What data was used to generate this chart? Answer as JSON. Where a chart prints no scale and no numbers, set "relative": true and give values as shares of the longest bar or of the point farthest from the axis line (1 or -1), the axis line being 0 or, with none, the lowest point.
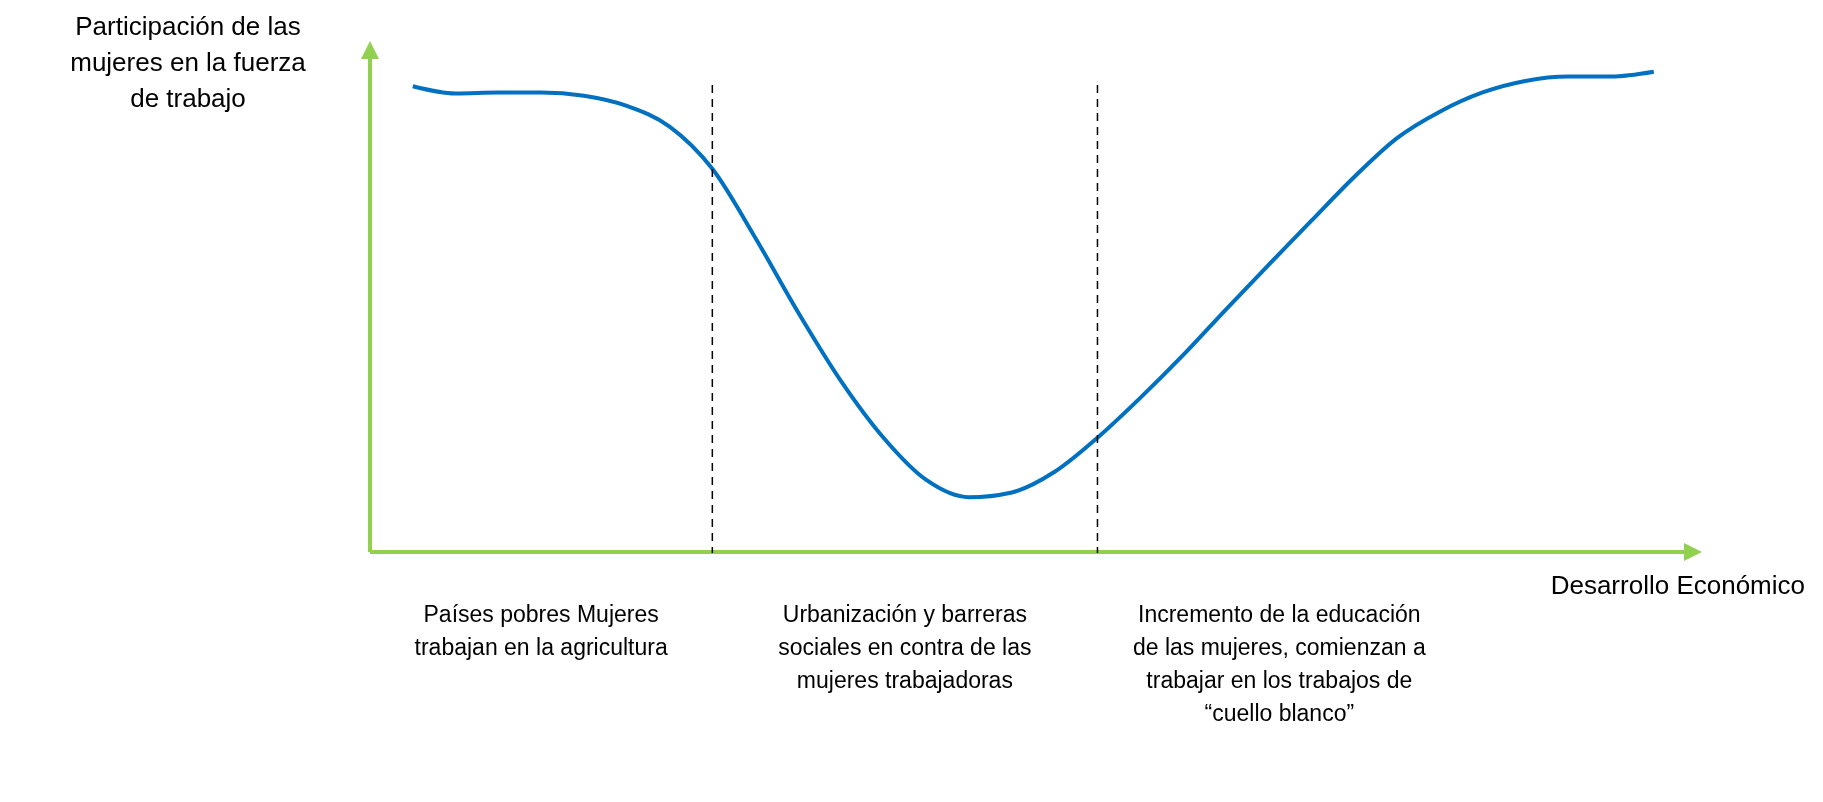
{
  "chart_data": {
    "type": "line",
    "relative": true,
    "ylabel": "Participación de las mujeres en la fuerza de trabajo",
    "xlabel": "Desarrollo Económico",
    "categories": [
      null,
      null,
      null,
      null,
      null,
      null,
      null,
      null,
      null,
      null,
      null,
      null,
      null,
      null,
      null,
      null,
      null,
      null,
      null,
      null,
      null,
      null,
      null,
      null,
      null,
      null,
      null,
      null,
      null,
      null
    ],
    "series": [
      {
        "color": "#0070c0",
        "values": [
          0.97,
          0.955,
          0.957,
          0.957,
          0.95,
          0.929,
          0.886,
          0.798,
          0.655,
          0.5,
          0.357,
          0.238,
          0.15,
          0.114,
          0.124,
          0.167,
          0.238,
          0.321,
          0.41,
          0.505,
          0.598,
          0.69,
          0.781,
          0.862,
          0.917,
          0.957,
          0.981,
          0.99,
          0.99,
          1
        ]
      }
    ],
    "annotations": [
      "Países pobres Mujeres trabajan en la agricultura",
      "Urbanización y barreras sociales en contra de las mujeres trabajadoras",
      "Incremento de la educación de las mujeres, comienzan a trabajar en los trabajos de “cuello blanco”"
    ],
    "grid": false,
    "legend": false,
    "marker": "none",
    "line_style": "solid"
  }
}
